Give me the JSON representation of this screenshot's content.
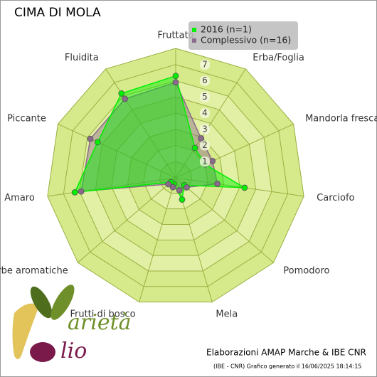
{
  "chart_data": {
    "type": "radar",
    "title": "CIMA DI MOLA",
    "categories": [
      "Fruttato",
      "Erba/Foglia",
      "Mandorla fresca",
      "Carciofo",
      "Pomodoro",
      "Mela",
      "Frutti di bosco",
      "Erbe aromatiche",
      "Amaro",
      "Piccante",
      "Fluidita"
    ],
    "series": [
      {
        "name": "2016 (n=1)",
        "color": "#00ee00",
        "values": [
          6.3,
          2.2,
          2.0,
          4.3,
          0.7,
          1.4,
          0.4,
          0.4,
          6.3,
          5.3,
          6.2
        ]
      },
      {
        "name": "Complessivo (n=16)",
        "color": "#8a6a8a",
        "values": [
          5.9,
          2.9,
          2.5,
          2.6,
          0.9,
          0.8,
          0.6,
          0.6,
          5.9,
          5.8,
          5.8
        ]
      }
    ],
    "rlim": [
      0,
      8
    ],
    "rticks": [
      1,
      2,
      3,
      4,
      5,
      6,
      7
    ],
    "footer": "Elaborazioni AMAP Marche & IBE CNR",
    "generated": "(IBE - CNR) Grafico generato il 16/06/2025 18:14:15",
    "logo": [
      "arietà",
      "lio"
    ]
  }
}
